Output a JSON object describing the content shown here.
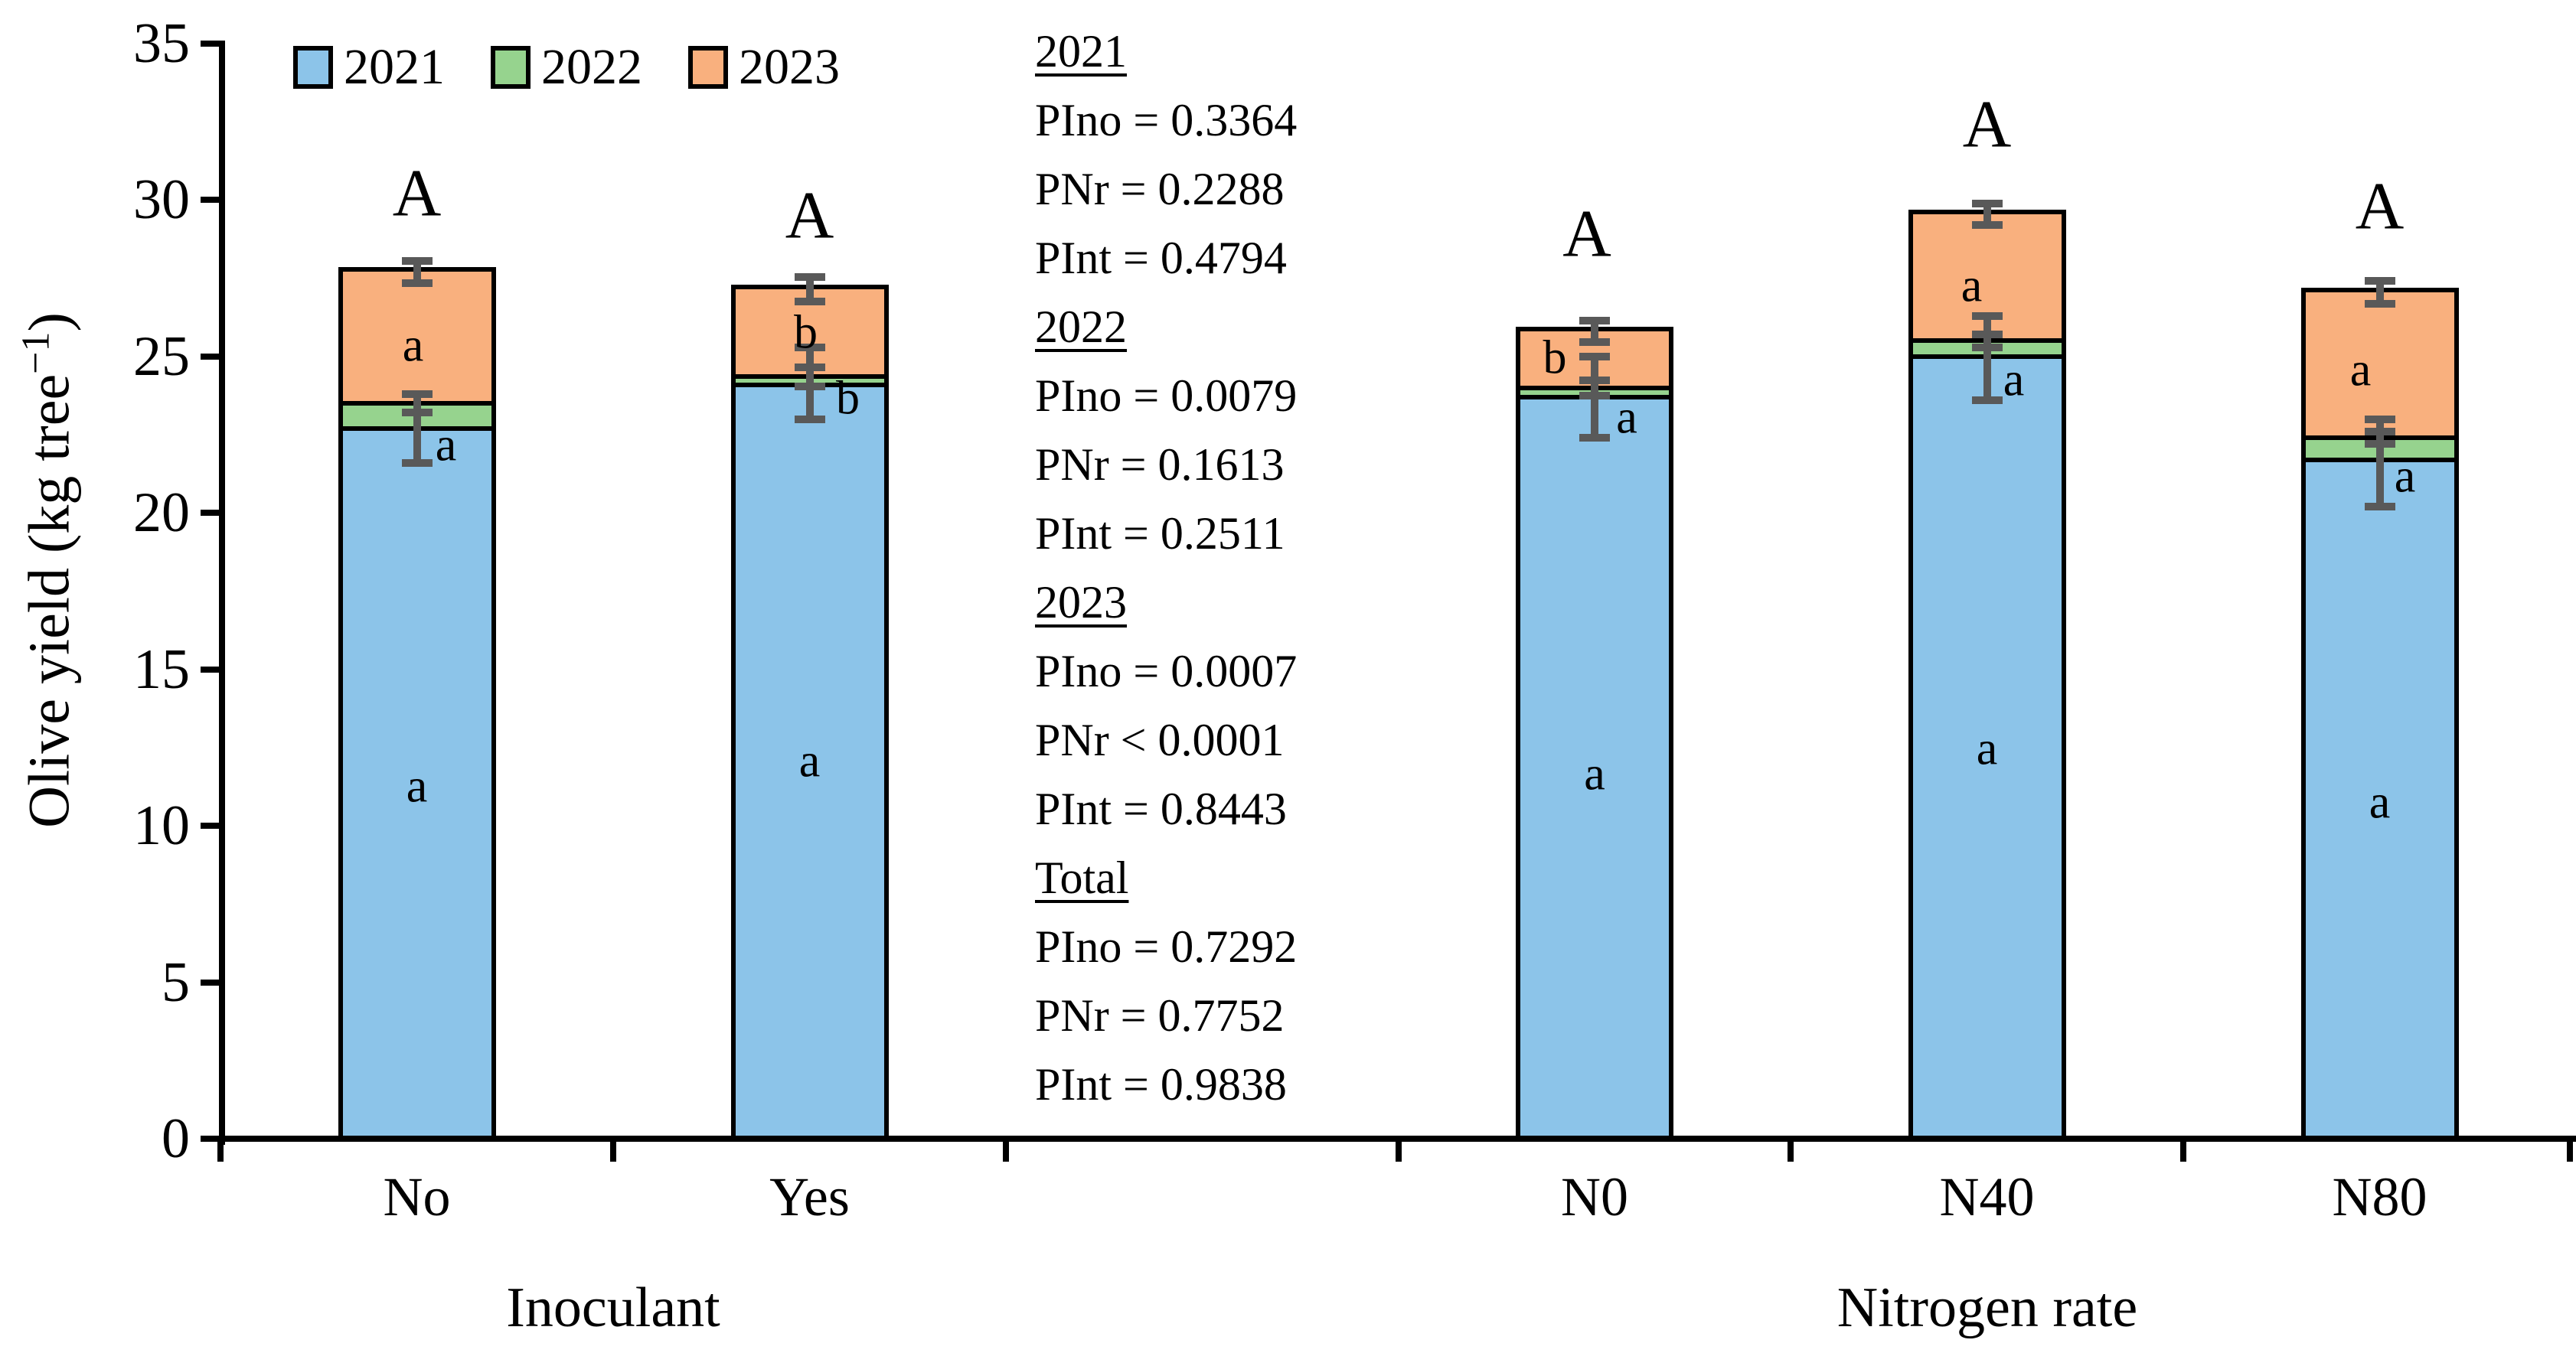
{
  "y_axis": {
    "title_prefix": "Olive yield (kg tree",
    "title_sup": "−1",
    "title_suffix": ")",
    "ticks": [
      0,
      5,
      10,
      15,
      20,
      25,
      30,
      35
    ]
  },
  "x_axis": {
    "group_labels": [
      "Inoculant",
      "Nitrogen rate"
    ]
  },
  "legend": {
    "items": [
      {
        "label": "2021",
        "color": "#8CC4E9"
      },
      {
        "label": "2022",
        "color": "#96D38E"
      },
      {
        "label": "2023",
        "color": "#F9B07E"
      }
    ]
  },
  "stats_panel": {
    "sections": [
      {
        "heading": "2021",
        "lines": [
          "PIno = 0.3364",
          "PNr = 0.2288",
          "PInt = 0.4794"
        ]
      },
      {
        "heading": "2022",
        "lines": [
          "PIno = 0.0079",
          "PNr = 0.1613",
          "PInt = 0.2511"
        ]
      },
      {
        "heading": "2023",
        "lines": [
          "PIno = 0.0007",
          "PNr < 0.0001",
          "PInt = 0.8443"
        ]
      },
      {
        "heading": "Total",
        "lines": [
          "PIno = 0.7292",
          "PNr = 0.7752",
          "PInt = 0.9838"
        ]
      }
    ]
  },
  "chart_data": {
    "type": "bar",
    "stacked": true,
    "title": "",
    "xlabel_groups": [
      "Inoculant",
      "Nitrogen rate"
    ],
    "ylabel": "Olive yield (kg tree-1)",
    "ylim": [
      0,
      35
    ],
    "ytick_step": 5,
    "categories": [
      "No",
      "Yes",
      "N0",
      "N40",
      "N80"
    ],
    "group_axis": [
      {
        "label": "Inoculant",
        "categories": [
          "No",
          "Yes"
        ]
      },
      {
        "label": "Nitrogen rate",
        "categories": [
          "N0",
          "N40",
          "N80"
        ]
      }
    ],
    "series": [
      {
        "name": "2021",
        "color": "#8CC4E9",
        "values": [
          22.7,
          24.1,
          23.7,
          25.0,
          21.7
        ]
      },
      {
        "name": "2022",
        "color": "#96D38E",
        "values": [
          0.8,
          0.25,
          0.3,
          0.5,
          0.7
        ]
      },
      {
        "name": "2023",
        "color": "#F9B07E",
        "values": [
          4.2,
          2.8,
          1.8,
          4.05,
          4.65
        ]
      }
    ],
    "stack_totals": [
      27.7,
      27.15,
      25.8,
      29.55,
      27.05
    ],
    "error_bar_color": "#595959",
    "error_bars": [
      {
        "category": "No",
        "total": {
          "at": 27.7,
          "plus": 0.35,
          "minus": 0.35
        },
        "top_2022": {
          "at": 23.5,
          "plus": 0.3,
          "minus": 0.3
        },
        "top_2021": {
          "at": 22.7,
          "plus": 1.1,
          "minus": 1.1
        }
      },
      {
        "category": "Yes",
        "total": {
          "at": 27.15,
          "plus": 0.4,
          "minus": 0.4
        },
        "top_2022": {
          "at": 24.35,
          "plus": 0.3,
          "minus": 0.3
        },
        "top_2021": {
          "at": 24.1,
          "plus": 1.2,
          "minus": 1.1
        }
      },
      {
        "category": "N0",
        "total": {
          "at": 25.8,
          "plus": 0.35,
          "minus": 0.35
        },
        "top_2022": {
          "at": 24.0,
          "plus": 0.25,
          "minus": 0.25
        },
        "top_2021": {
          "at": 23.7,
          "plus": 1.3,
          "minus": 1.3
        }
      },
      {
        "category": "N40",
        "total": {
          "at": 29.55,
          "plus": 0.35,
          "minus": 0.35
        },
        "top_2022": {
          "at": 25.5,
          "plus": 0.2,
          "minus": 0.2
        },
        "top_2021": {
          "at": 25.0,
          "plus": 1.3,
          "minus": 1.4
        }
      },
      {
        "category": "N80",
        "total": {
          "at": 27.05,
          "plus": 0.37,
          "minus": 0.37
        },
        "top_2022": {
          "at": 22.4,
          "plus": 0.2,
          "minus": 0.2
        },
        "top_2021": {
          "at": 21.7,
          "plus": 1.3,
          "minus": 1.5
        }
      }
    ],
    "significance_letters": [
      {
        "category": "No",
        "total": {
          "text": "A",
          "value": 30.1,
          "dx": 0
        },
        "s2023": {
          "text": "a",
          "value": 25.3,
          "dx": -5
        },
        "s2022": {
          "text": "a",
          "value": 22.1,
          "dx": 38
        },
        "s2021": {
          "text": "a",
          "value": 11.2,
          "dx": 0
        }
      },
      {
        "category": "Yes",
        "total": {
          "text": "A",
          "value": 29.4,
          "dx": 0
        },
        "s2023": {
          "text": "b",
          "value": 25.7,
          "dx": -5
        },
        "s2022": {
          "text": "b",
          "value": 23.6,
          "dx": 50
        },
        "s2021": {
          "text": "a",
          "value": 12.0,
          "dx": 0
        }
      },
      {
        "category": "N0",
        "total": {
          "text": "A",
          "value": 28.8,
          "dx": -10
        },
        "s2023": {
          "text": "b",
          "value": 24.9,
          "dx": -52
        },
        "s2022": {
          "text": "a",
          "value": 23.0,
          "dx": 42
        },
        "s2021": {
          "text": "a",
          "value": 11.6,
          "dx": 0
        }
      },
      {
        "category": "N40",
        "total": {
          "text": "A",
          "value": 32.3,
          "dx": 0
        },
        "s2023": {
          "text": "a",
          "value": 27.2,
          "dx": -20
        },
        "s2022": {
          "text": "a",
          "value": 24.2,
          "dx": 35
        },
        "s2021": {
          "text": "a",
          "value": 12.4,
          "dx": 0
        }
      },
      {
        "category": "N80",
        "total": {
          "text": "A",
          "value": 29.7,
          "dx": 0
        },
        "s2023": {
          "text": "a",
          "value": 24.5,
          "dx": -25
        },
        "s2022": {
          "text": "a",
          "value": 21.1,
          "dx": 33
        },
        "s2021": {
          "text": "a",
          "value": 10.7,
          "dx": 0
        }
      }
    ]
  }
}
